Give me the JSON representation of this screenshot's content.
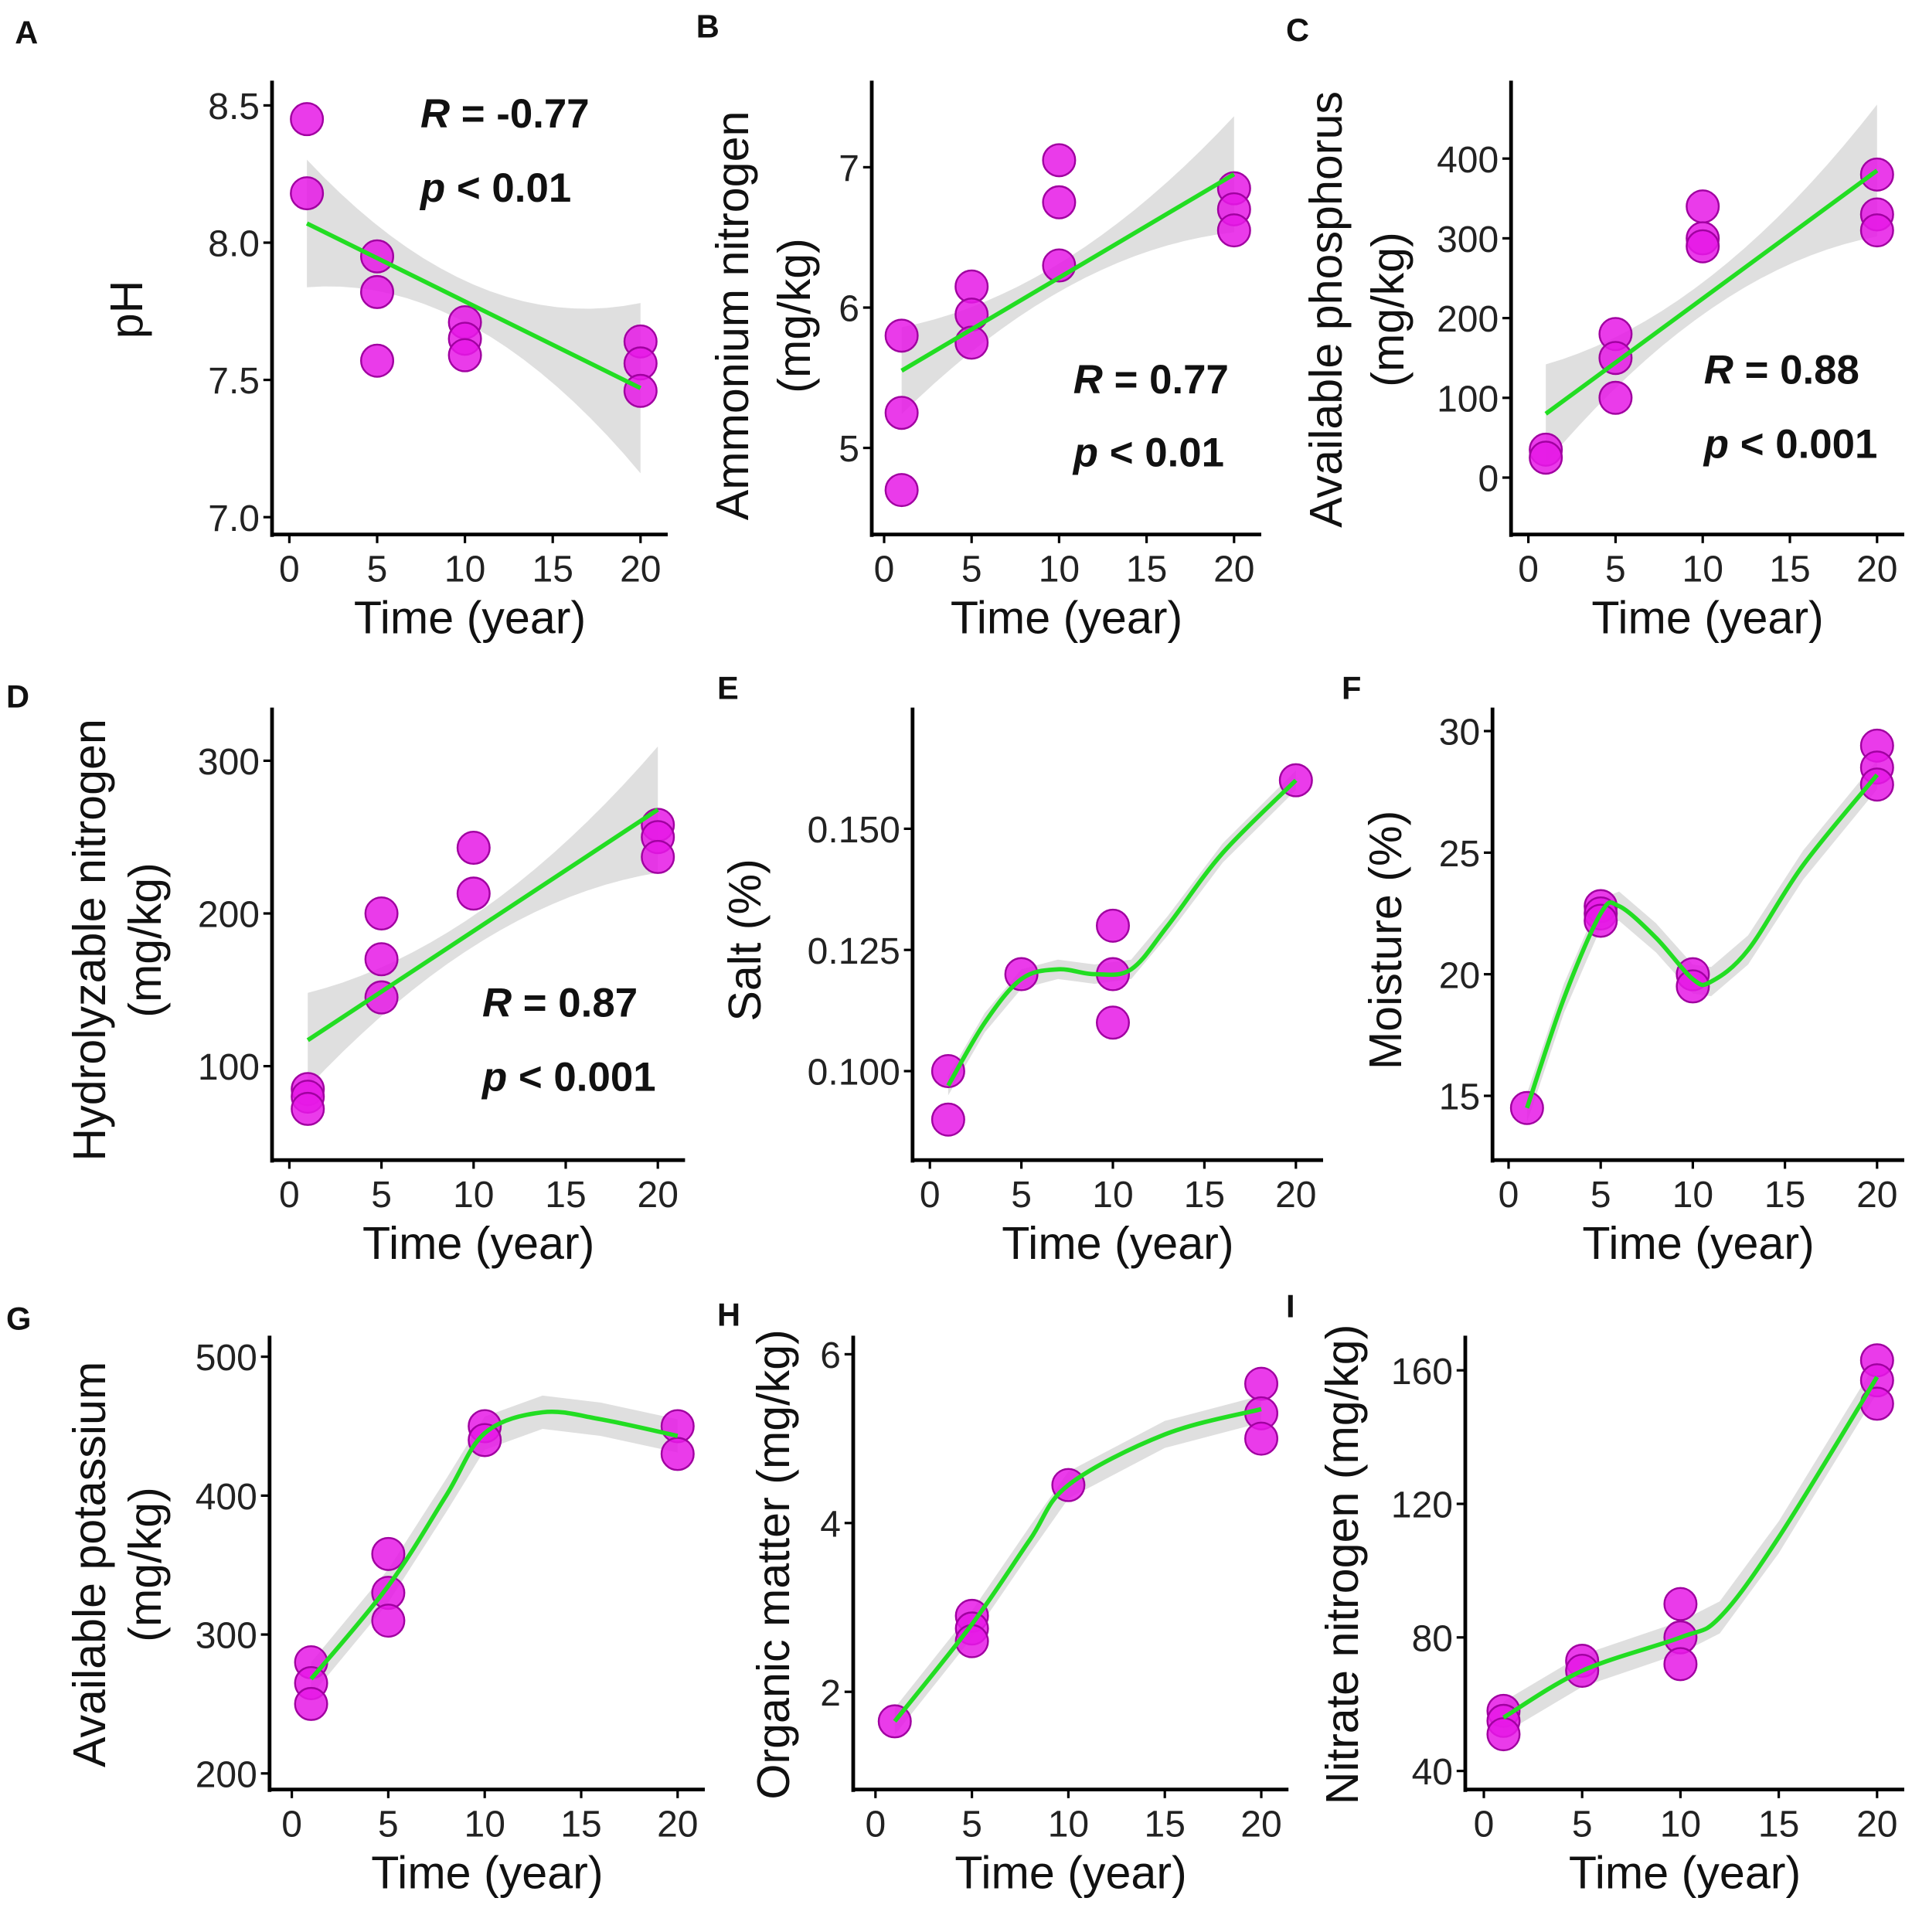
{
  "colors": {
    "points": "#e619e6",
    "point_stroke": "#a000a0",
    "fit": "#22dd22",
    "band": "#d9d9d9"
  },
  "chart_data": [
    {
      "panel": "A",
      "type": "scatter",
      "fit": "linear",
      "ylabel": [
        "pH"
      ],
      "xlabel": "Time (year)",
      "xticks": [
        0,
        5,
        10,
        15,
        20
      ],
      "yticks": [
        "7.0",
        "7.5",
        "8.0",
        "8.5"
      ],
      "ylim": [
        7.0,
        8.5
      ],
      "points": [
        [
          1,
          8.45
        ],
        [
          1,
          8.18
        ],
        [
          5,
          7.95
        ],
        [
          5,
          7.82
        ],
        [
          5,
          7.57
        ],
        [
          10,
          7.71
        ],
        [
          10,
          7.65
        ],
        [
          10,
          7.59
        ],
        [
          20,
          7.64
        ],
        [
          20,
          7.56
        ],
        [
          20,
          7.46
        ]
      ],
      "fit_line": [
        [
          1,
          8.07
        ],
        [
          20,
          7.47
        ]
      ],
      "annotation": [
        "R = -0.77",
        "p < 0.01"
      ]
    },
    {
      "panel": "B",
      "type": "scatter",
      "fit": "linear",
      "ylabel": [
        "Ammonium nitrogen",
        "(mg/kg)"
      ],
      "xlabel": "Time (year)",
      "xticks": [
        0,
        5,
        10,
        15,
        20
      ],
      "yticks": [
        "5",
        "6",
        "7"
      ],
      "ylim": [
        5,
        7
      ],
      "points": [
        [
          1,
          5.8
        ],
        [
          1,
          5.25
        ],
        [
          1,
          4.7
        ],
        [
          5,
          6.15
        ],
        [
          5,
          5.95
        ],
        [
          5,
          5.75
        ],
        [
          10,
          7.05
        ],
        [
          10,
          6.75
        ],
        [
          10,
          6.3
        ],
        [
          20,
          6.85
        ],
        [
          20,
          6.7
        ],
        [
          20,
          6.55
        ]
      ],
      "fit_line": [
        [
          1,
          5.55
        ],
        [
          20,
          6.95
        ]
      ],
      "annotation": [
        "R = 0.77",
        "p < 0.01"
      ]
    },
    {
      "panel": "C",
      "type": "scatter",
      "fit": "linear",
      "ylabel": [
        "Available phosphorus",
        "(mg/kg)"
      ],
      "xlabel": "Time (year)",
      "xticks": [
        0,
        5,
        10,
        15,
        20
      ],
      "yticks": [
        "0",
        "100",
        "200",
        "300",
        "400"
      ],
      "ylim": [
        0,
        400
      ],
      "points": [
        [
          1,
          35
        ],
        [
          1,
          25
        ],
        [
          5,
          180
        ],
        [
          5,
          150
        ],
        [
          5,
          100
        ],
        [
          10,
          340
        ],
        [
          10,
          300
        ],
        [
          10,
          290
        ],
        [
          20,
          380
        ],
        [
          20,
          330
        ],
        [
          20,
          310
        ]
      ],
      "fit_line": [
        [
          1,
          80
        ],
        [
          20,
          385
        ]
      ],
      "annotation": [
        "R = 0.88",
        "p < 0.001"
      ]
    },
    {
      "panel": "D",
      "type": "scatter",
      "fit": "linear",
      "ylabel": [
        "Hydrolyzable nitrogen",
        "(mg/kg)"
      ],
      "xlabel": "Time (year)",
      "xticks": [
        0,
        5,
        10,
        15,
        20
      ],
      "yticks": [
        "100",
        "200",
        "300"
      ],
      "ylim": [
        100,
        300
      ],
      "points": [
        [
          1,
          85
        ],
        [
          1,
          80
        ],
        [
          1,
          72
        ],
        [
          5,
          200
        ],
        [
          5,
          170
        ],
        [
          5,
          145
        ],
        [
          10,
          243
        ],
        [
          10,
          213
        ],
        [
          20,
          258
        ],
        [
          20,
          250
        ],
        [
          20,
          237
        ]
      ],
      "fit_line": [
        [
          1,
          117
        ],
        [
          20,
          268
        ]
      ],
      "annotation": [
        "R = 0.87",
        "p < 0.001"
      ]
    },
    {
      "panel": "E",
      "type": "scatter",
      "fit": "smooth",
      "ylabel": [
        "Salt (%)"
      ],
      "xlabel": "Time (year)",
      "xticks": [
        0,
        5,
        10,
        15,
        20
      ],
      "yticks": [
        "0.100",
        "0.125",
        "0.150"
      ],
      "ylim": [
        0.1,
        0.15
      ],
      "points": [
        [
          1,
          0.1
        ],
        [
          1,
          0.09
        ],
        [
          5,
          0.12
        ],
        [
          10,
          0.13
        ],
        [
          10,
          0.12
        ],
        [
          10,
          0.11
        ],
        [
          20,
          0.16
        ]
      ],
      "fit_line": [
        [
          1,
          0.097
        ],
        [
          3,
          0.11
        ],
        [
          5,
          0.119
        ],
        [
          7,
          0.121
        ],
        [
          9,
          0.12
        ],
        [
          11,
          0.121
        ],
        [
          13,
          0.13
        ],
        [
          16,
          0.145
        ],
        [
          20,
          0.16
        ]
      ]
    },
    {
      "panel": "F",
      "type": "scatter",
      "fit": "smooth",
      "ylabel": [
        "Moisture (%)"
      ],
      "xlabel": "Time (year)",
      "xticks": [
        0,
        5,
        10,
        15,
        20
      ],
      "yticks": [
        "15",
        "20",
        "25",
        "30"
      ],
      "ylim": [
        15,
        30
      ],
      "points": [
        [
          1,
          14.5
        ],
        [
          5,
          22.8
        ],
        [
          5,
          22.5
        ],
        [
          5,
          22.2
        ],
        [
          10,
          20
        ],
        [
          10,
          19.5
        ],
        [
          20,
          29.4
        ],
        [
          20,
          28.5
        ],
        [
          20,
          27.8
        ]
      ],
      "fit_line": [
        [
          1,
          14.5
        ],
        [
          3,
          19
        ],
        [
          5,
          22.5
        ],
        [
          6,
          22.8
        ],
        [
          8,
          21.5
        ],
        [
          10,
          19.8
        ],
        [
          11,
          19.7
        ],
        [
          13,
          21
        ],
        [
          16,
          24.5
        ],
        [
          20,
          28.2
        ]
      ]
    },
    {
      "panel": "G",
      "type": "scatter",
      "fit": "smooth",
      "ylabel": [
        "Available potassium",
        "(mg/kg)"
      ],
      "xlabel": "Time (year)",
      "xticks": [
        0,
        5,
        10,
        15,
        20
      ],
      "yticks": [
        "200",
        "300",
        "400",
        "500"
      ],
      "ylim": [
        200,
        500
      ],
      "points": [
        [
          1,
          280
        ],
        [
          1,
          265
        ],
        [
          1,
          250
        ],
        [
          5,
          358
        ],
        [
          5,
          330
        ],
        [
          5,
          310
        ],
        [
          10,
          450
        ],
        [
          10,
          440
        ],
        [
          20,
          450
        ],
        [
          20,
          430
        ]
      ],
      "fit_line": [
        [
          1,
          268
        ],
        [
          5,
          335
        ],
        [
          8,
          400
        ],
        [
          10,
          445
        ],
        [
          13,
          460
        ],
        [
          16,
          455
        ],
        [
          20,
          443
        ]
      ]
    },
    {
      "panel": "H",
      "type": "scatter",
      "fit": "smooth",
      "ylabel": [
        "Organic matter (mg/kg)"
      ],
      "xlabel": "Time (year)",
      "xticks": [
        0,
        5,
        10,
        15,
        20
      ],
      "yticks": [
        "2",
        "4",
        "6"
      ],
      "ylim": [
        2,
        6
      ],
      "points": [
        [
          1,
          1.65
        ],
        [
          5,
          2.9
        ],
        [
          5,
          2.75
        ],
        [
          5,
          2.6
        ],
        [
          10,
          4.45
        ],
        [
          20,
          5.65
        ],
        [
          20,
          5.3
        ],
        [
          20,
          5.0
        ]
      ],
      "fit_line": [
        [
          1,
          1.65
        ],
        [
          5,
          2.8
        ],
        [
          8,
          3.8
        ],
        [
          10,
          4.45
        ],
        [
          15,
          5.05
        ],
        [
          20,
          5.35
        ]
      ]
    },
    {
      "panel": "I",
      "type": "scatter",
      "fit": "smooth",
      "ylabel": [
        "Nitrate nitrogen (mg/kg)"
      ],
      "xlabel": "Time (year)",
      "xticks": [
        0,
        5,
        10,
        15,
        20
      ],
      "yticks": [
        "40",
        "80",
        "120",
        "160"
      ],
      "ylim": [
        40,
        160
      ],
      "points": [
        [
          1,
          58
        ],
        [
          1,
          55
        ],
        [
          1,
          51
        ],
        [
          5,
          73
        ],
        [
          5,
          70
        ],
        [
          10,
          90
        ],
        [
          10,
          80
        ],
        [
          10,
          72
        ],
        [
          20,
          163
        ],
        [
          20,
          157
        ],
        [
          20,
          150
        ]
      ],
      "fit_line": [
        [
          1,
          56
        ],
        [
          5,
          70
        ],
        [
          10,
          80
        ],
        [
          12,
          86
        ],
        [
          15,
          110
        ],
        [
          20,
          158
        ]
      ]
    }
  ]
}
